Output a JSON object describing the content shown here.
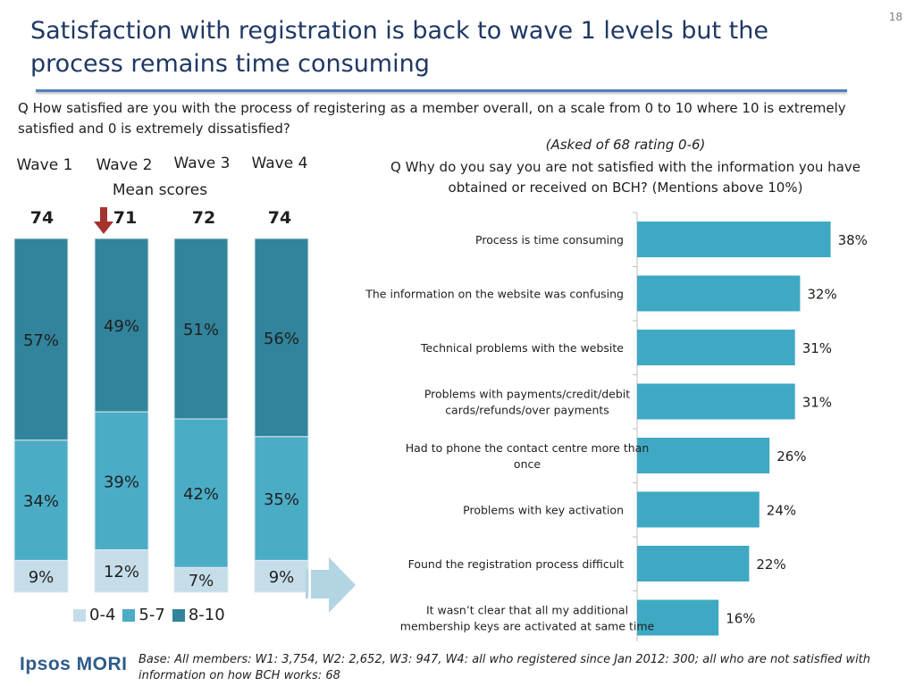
{
  "page_number": "18",
  "title": "Satisfaction with registration is back to wave 1 levels but the process remains time consuming",
  "question_main": "Q How satisfied are you with the process of registering as a member overall, on a scale from 0 to 10 where 10 is extremely satisfied and 0 is extremely dissatisfied?",
  "mean_scores_label": "Mean scores",
  "asked_note": "(Asked of 68 rating 0-6)",
  "question_sub": "Q Why do you say you are not satisfied with the information you have obtained or received on BCH?   (Mentions above 10%)",
  "logo_text": "Ipsos MORI",
  "base_note": "Base: All members: W1: 3,754, W2: 2,652, W3: 947, W4: all who registered since Jan 2012: 300; all who are not satisfied with information on how BCH works: 68",
  "colors": {
    "title": "#1f3864",
    "band_0_4": "#c5dde8",
    "band_5_7": "#4bacc6",
    "band_8_10": "#31849b",
    "reason_bar": "#3fa9c4",
    "arrow_down": "#a5332d",
    "arrow_right": "#b3d4e2"
  },
  "chart_data": [
    {
      "type": "bar",
      "stacked": true,
      "categories": [
        "Wave 1",
        "Wave 2",
        "Wave 3",
        "Wave 4"
      ],
      "mean_scores": [
        "74",
        "71",
        "72",
        "74"
      ],
      "series": [
        {
          "name": "0-4",
          "values": [
            9,
            12,
            7,
            9
          ],
          "labels": [
            "9%",
            "12%",
            "7%",
            "9%"
          ]
        },
        {
          "name": "5-7",
          "values": [
            34,
            39,
            42,
            35
          ],
          "labels": [
            "34%",
            "39%",
            "42%",
            "35%"
          ]
        },
        {
          "name": "8-10",
          "values": [
            57,
            49,
            51,
            56
          ],
          "labels": [
            "57%",
            "49%",
            "51%",
            "56%"
          ]
        }
      ],
      "legend": "bottom",
      "ylim": [
        0,
        100
      ]
    },
    {
      "type": "bar",
      "orientation": "horizontal",
      "categories": [
        "Process is time consuming",
        "The information on the website was confusing",
        "Technical problems with the website",
        "Problems with payments/credit/debit cards/refunds/over payments",
        "Had to phone the contact centre more than once",
        "Problems with key activation",
        "Found the registration process difficult",
        "It wasn’t clear that all my additional membership keys are activated at  same time"
      ],
      "category_lines": [
        [
          "Process is time consuming"
        ],
        [
          "The information on the website was confusing"
        ],
        [
          "Technical problems with the website"
        ],
        [
          "Problems with payments/credit/debit",
          "cards/refunds/over payments"
        ],
        [
          "Had to phone the contact centre more than",
          "once"
        ],
        [
          "Problems with key activation"
        ],
        [
          "Found the registration process difficult"
        ],
        [
          "It wasn’t clear that all my additional",
          "membership keys are activated at  same time"
        ]
      ],
      "values": [
        38,
        32,
        31,
        31,
        26,
        24,
        22,
        16
      ],
      "labels": [
        "38%",
        "32%",
        "31%",
        "31%",
        "26%",
        "24%",
        "22%",
        "16%"
      ],
      "xlim": [
        0,
        40
      ],
      "grid": false
    }
  ]
}
